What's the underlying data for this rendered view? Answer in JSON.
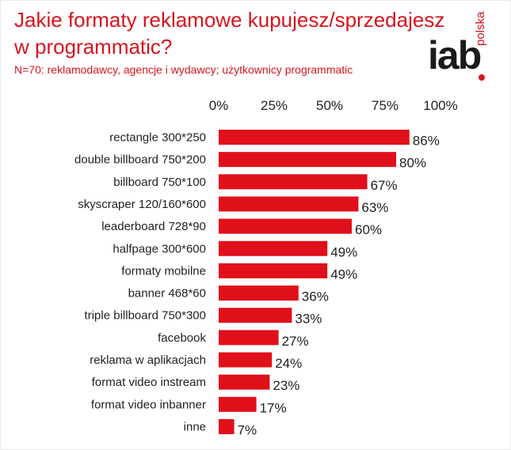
{
  "header": {
    "title": "Jakie formaty reklamowe kupujesz/sprzedajesz w programmatic?",
    "subtitle": "N=70: reklamodawcy, agencje i wydawcy; użytkownicy programmatic"
  },
  "logo": {
    "main_text": "iab",
    "side_text": "polska",
    "brand_color": "#d7141e"
  },
  "chart_data": {
    "type": "bar",
    "orientation": "horizontal",
    "categories": [
      "rectangle 300*250",
      "double billboard 750*200",
      "billboard 750*100",
      "skyscraper 120/160*600",
      "leaderboard 728*90",
      "halfpage 300*600",
      "formaty mobilne",
      "banner 468*60",
      "triple billboard 750*300",
      "facebook",
      "reklama w aplikacjach",
      "format video instream",
      "format video inbanner",
      "inne"
    ],
    "values": [
      86,
      80,
      67,
      63,
      60,
      49,
      49,
      36,
      33,
      27,
      24,
      23,
      17,
      7
    ],
    "value_labels": [
      "86%",
      "80%",
      "67%",
      "63%",
      "60%",
      "49%",
      "49%",
      "36%",
      "33%",
      "27%",
      "24%",
      "23%",
      "17%",
      "7%"
    ],
    "ticks": [
      0,
      25,
      50,
      75,
      100
    ],
    "tick_labels": [
      "0%",
      "25%",
      "50%",
      "75%",
      "100%"
    ],
    "xlim": [
      0,
      100
    ],
    "axis_position": "top",
    "grid": false,
    "bar_color": "#e0101b"
  }
}
